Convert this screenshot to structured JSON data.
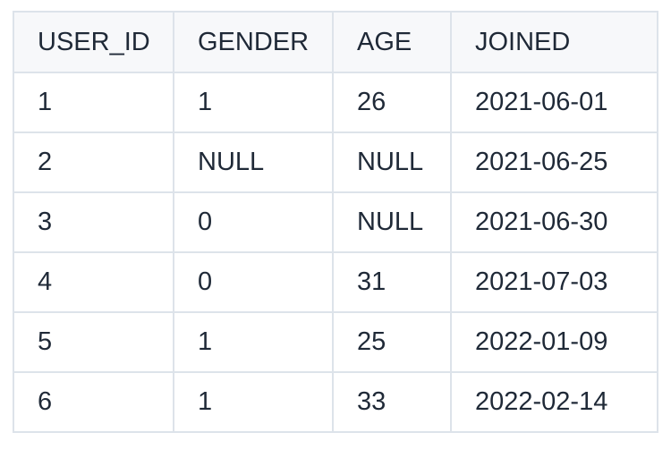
{
  "table": {
    "columns": [
      "USER_ID",
      "GENDER",
      "AGE",
      "JOINED"
    ],
    "rows": [
      [
        "1",
        "1",
        "26",
        "2021-06-01"
      ],
      [
        "2",
        "NULL",
        "NULL",
        "2021-06-25"
      ],
      [
        "3",
        "0",
        "NULL",
        "2021-06-30"
      ],
      [
        "4",
        "0",
        "31",
        "2021-07-03"
      ],
      [
        "5",
        "1",
        "25",
        "2022-01-09"
      ],
      [
        "6",
        "1",
        "33",
        "2022-02-14"
      ]
    ]
  }
}
